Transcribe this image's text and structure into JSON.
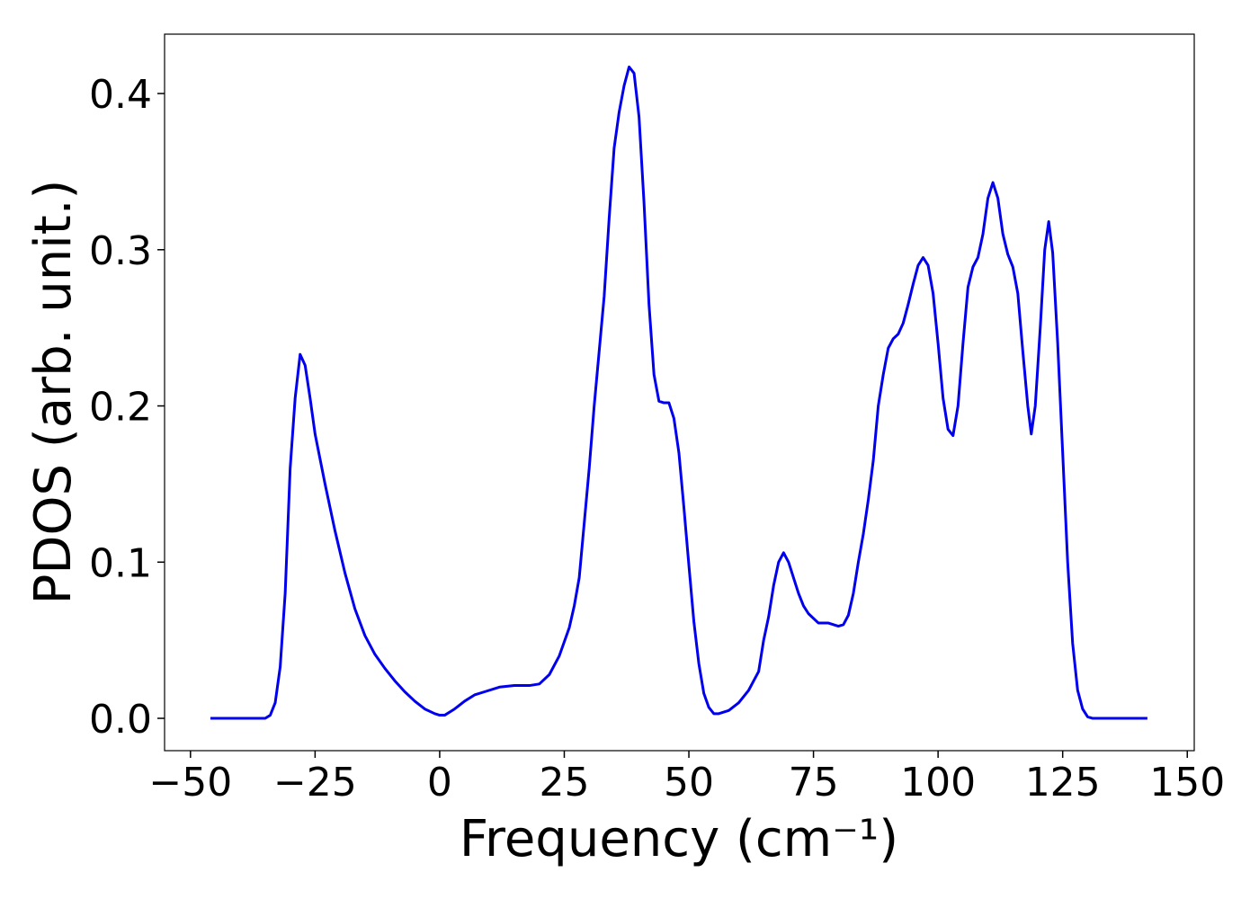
{
  "chart_data": {
    "type": "line",
    "xlabel": "Frequency (cm⁻¹)",
    "ylabel": "PDOS (arb. unit.)",
    "xlim": [
      -55.2,
      151.4
    ],
    "ylim": [
      -0.0207,
      0.438
    ],
    "xticks": [
      {
        "value": -50,
        "label": "−50"
      },
      {
        "value": -25,
        "label": "−25"
      },
      0,
      25,
      50,
      75,
      100,
      125,
      150
    ],
    "yticks": [
      {
        "value": 0,
        "label": "0.0"
      },
      0.1,
      0.2,
      0.3,
      0.4
    ],
    "grid": false,
    "series": [
      {
        "name": "PDOS",
        "color": "#0000ee",
        "x": [
          -46,
          -40,
          -35,
          -34,
          -33,
          -32,
          -31,
          -30,
          -29,
          -28,
          -27,
          -26,
          -25,
          -23,
          -21,
          -19,
          -17,
          -15,
          -13,
          -11,
          -9,
          -7,
          -5,
          -3,
          -1,
          0,
          1,
          3,
          5,
          7,
          9,
          12,
          15,
          18,
          20,
          22,
          24,
          26,
          27,
          28,
          29,
          30,
          31,
          32,
          33,
          34,
          35,
          36,
          37,
          38,
          39,
          40,
          41,
          42,
          43,
          44,
          45,
          46,
          47,
          48,
          49,
          50,
          51,
          52,
          53,
          54,
          55,
          56,
          58,
          60,
          62,
          63,
          64,
          65,
          66,
          67,
          68,
          69,
          70,
          71,
          72,
          73,
          74,
          76,
          78,
          80,
          81,
          82,
          83,
          84,
          85,
          86,
          87,
          88,
          89,
          90,
          91,
          92,
          93,
          94,
          95,
          96,
          97,
          98,
          99,
          100,
          101,
          102,
          103,
          104,
          105,
          106,
          107,
          108,
          109,
          110,
          111,
          112,
          113,
          114,
          115,
          116,
          117,
          118,
          118.7,
          119.5,
          120.5,
          121.4,
          122.2,
          123,
          124,
          125,
          126,
          127,
          128,
          129,
          130,
          131,
          142
        ],
        "values": [
          0,
          0,
          0,
          0.002,
          0.01,
          0.033,
          0.08,
          0.16,
          0.205,
          0.233,
          0.226,
          0.205,
          0.182,
          0.15,
          0.12,
          0.093,
          0.07,
          0.053,
          0.041,
          0.032,
          0.024,
          0.017,
          0.011,
          0.006,
          0.003,
          0.002,
          0.002,
          0.006,
          0.011,
          0.015,
          0.017,
          0.02,
          0.021,
          0.021,
          0.022,
          0.028,
          0.04,
          0.058,
          0.072,
          0.09,
          0.125,
          0.16,
          0.2,
          0.235,
          0.27,
          0.32,
          0.365,
          0.388,
          0.405,
          0.417,
          0.413,
          0.385,
          0.33,
          0.265,
          0.22,
          0.203,
          0.202,
          0.202,
          0.192,
          0.17,
          0.135,
          0.098,
          0.062,
          0.035,
          0.016,
          0.007,
          0.003,
          0.003,
          0.005,
          0.01,
          0.018,
          0.024,
          0.03,
          0.05,
          0.065,
          0.085,
          0.1,
          0.106,
          0.1,
          0.09,
          0.08,
          0.072,
          0.067,
          0.061,
          0.061,
          0.059,
          0.06,
          0.066,
          0.08,
          0.1,
          0.118,
          0.14,
          0.165,
          0.2,
          0.22,
          0.237,
          0.243,
          0.246,
          0.253,
          0.265,
          0.278,
          0.29,
          0.295,
          0.29,
          0.272,
          0.24,
          0.205,
          0.185,
          0.181,
          0.2,
          0.24,
          0.276,
          0.289,
          0.295,
          0.31,
          0.333,
          0.343,
          0.333,
          0.31,
          0.297,
          0.289,
          0.272,
          0.235,
          0.2,
          0.182,
          0.2,
          0.25,
          0.3,
          0.318,
          0.298,
          0.24,
          0.17,
          0.1,
          0.048,
          0.018,
          0.006,
          0.001,
          0,
          0
        ]
      }
    ]
  }
}
